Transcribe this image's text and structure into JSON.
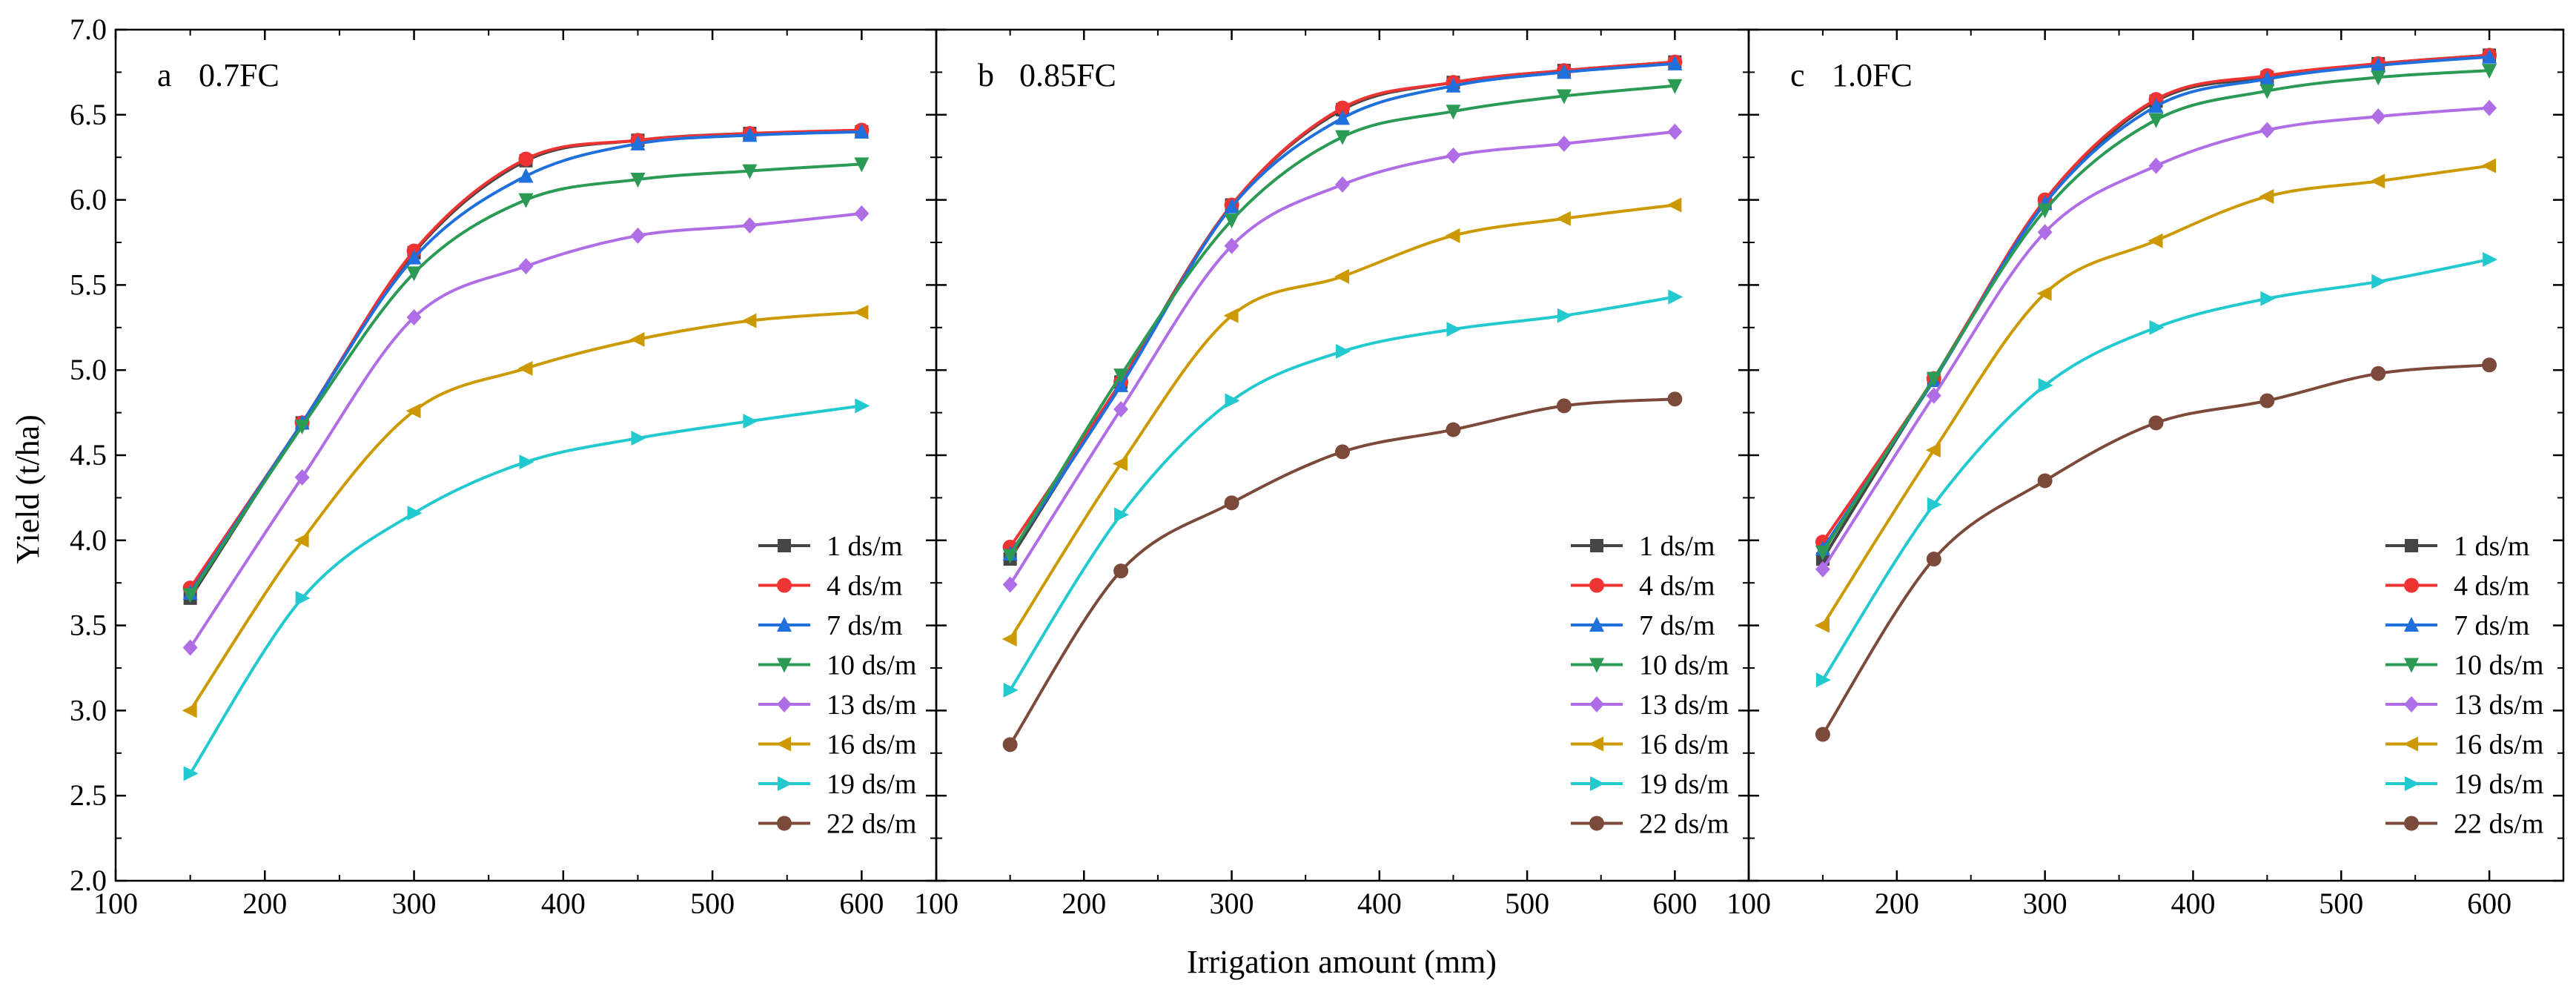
{
  "chart_data": {
    "type": "line",
    "ylabel": "Yield (t/ha)",
    "xlabel": "Irrigation amount (mm)",
    "xlim": [
      100,
      650
    ],
    "ylim": [
      2.0,
      7.0
    ],
    "x_ticks": [
      100,
      200,
      300,
      400,
      500,
      600
    ],
    "x_tick_labels": [
      "100",
      "200",
      "300",
      "400",
      "500",
      "600"
    ],
    "y_ticks": [
      2.0,
      2.5,
      3.0,
      3.5,
      4.0,
      4.5,
      5.0,
      5.5,
      6.0,
      6.5,
      7.0
    ],
    "y_tick_labels": [
      "2.0",
      "2.5",
      "3.0",
      "3.5",
      "4.0",
      "4.5",
      "5.0",
      "5.5",
      "6.0",
      "6.5",
      "7.0"
    ],
    "x": [
      150,
      225,
      300,
      375,
      450,
      525,
      600
    ],
    "legend_labels": [
      "1 ds/m",
      "4 ds/m",
      "7 ds/m",
      "10 ds/m",
      "13 ds/m",
      "16 ds/m",
      "19 ds/m",
      "22 ds/m"
    ],
    "series_styles": [
      {
        "color": "#454545",
        "marker": "square"
      },
      {
        "color": "#ee3333",
        "marker": "circle"
      },
      {
        "color": "#1f6fdd",
        "marker": "triangle-up"
      },
      {
        "color": "#2b9a55",
        "marker": "triangle-down"
      },
      {
        "color": "#b06ee6",
        "marker": "diamond"
      },
      {
        "color": "#cc9900",
        "marker": "triangle-left"
      },
      {
        "color": "#22c9cf",
        "marker": "triangle-right"
      },
      {
        "color": "#7b4a3a",
        "marker": "circle"
      }
    ],
    "panels": [
      {
        "letter": "a",
        "label": "0.7FC",
        "series": [
          {
            "name": "1 ds/m",
            "values": [
              3.66,
              4.69,
              5.69,
              6.23,
              6.35,
              6.39,
              6.4
            ]
          },
          {
            "name": "4 ds/m",
            "values": [
              3.72,
              4.69,
              5.7,
              6.24,
              6.35,
              6.39,
              6.41
            ]
          },
          {
            "name": "7 ds/m",
            "values": [
              3.69,
              4.69,
              5.66,
              6.14,
              6.33,
              6.38,
              6.4
            ]
          },
          {
            "name": "10 ds/m",
            "values": [
              3.68,
              4.67,
              5.57,
              6.0,
              6.12,
              6.17,
              6.21
            ]
          },
          {
            "name": "13 ds/m",
            "values": [
              3.37,
              4.37,
              5.31,
              5.61,
              5.79,
              5.85,
              5.92
            ]
          },
          {
            "name": "16 ds/m",
            "values": [
              3.0,
              4.0,
              4.76,
              5.01,
              5.18,
              5.29,
              5.34
            ]
          },
          {
            "name": "19 ds/m",
            "values": [
              2.63,
              3.66,
              4.16,
              4.46,
              4.6,
              4.7,
              4.79
            ]
          }
        ]
      },
      {
        "letter": "b",
        "label": "0.85FC",
        "series": [
          {
            "name": "1 ds/m",
            "values": [
              3.89,
              4.93,
              5.97,
              6.53,
              6.69,
              6.76,
              6.81
            ]
          },
          {
            "name": "4 ds/m",
            "values": [
              3.96,
              4.93,
              5.97,
              6.54,
              6.69,
              6.76,
              6.81
            ]
          },
          {
            "name": "7 ds/m",
            "values": [
              3.92,
              4.91,
              5.96,
              6.48,
              6.67,
              6.75,
              6.8
            ]
          },
          {
            "name": "10 ds/m",
            "values": [
              3.91,
              4.97,
              5.88,
              6.37,
              6.52,
              6.61,
              6.67
            ]
          },
          {
            "name": "13 ds/m",
            "values": [
              3.74,
              4.77,
              5.73,
              6.09,
              6.26,
              6.33,
              6.4
            ]
          },
          {
            "name": "16 ds/m",
            "values": [
              3.42,
              4.45,
              5.32,
              5.55,
              5.79,
              5.89,
              5.97
            ]
          },
          {
            "name": "19 ds/m",
            "values": [
              3.12,
              4.15,
              4.82,
              5.11,
              5.24,
              5.32,
              5.43
            ]
          },
          {
            "name": "22 ds/m",
            "values": [
              2.8,
              3.82,
              4.22,
              4.52,
              4.65,
              4.79,
              4.83
            ]
          }
        ]
      },
      {
        "letter": "c",
        "label": "1.0FC",
        "series": [
          {
            "name": "1 ds/m",
            "values": [
              3.89,
              4.95,
              5.98,
              6.58,
              6.72,
              6.8,
              6.85
            ]
          },
          {
            "name": "4 ds/m",
            "values": [
              3.99,
              4.95,
              6.0,
              6.59,
              6.73,
              6.8,
              6.85
            ]
          },
          {
            "name": "7 ds/m",
            "values": [
              3.95,
              4.94,
              5.98,
              6.55,
              6.71,
              6.79,
              6.84
            ]
          },
          {
            "name": "10 ds/m",
            "values": [
              3.93,
              4.95,
              5.94,
              6.47,
              6.64,
              6.72,
              6.76
            ]
          },
          {
            "name": "13 ds/m",
            "values": [
              3.83,
              4.85,
              5.81,
              6.2,
              6.41,
              6.49,
              6.54
            ]
          },
          {
            "name": "16 ds/m",
            "values": [
              3.5,
              4.53,
              5.45,
              5.76,
              6.02,
              6.11,
              6.2
            ]
          },
          {
            "name": "19 ds/m",
            "values": [
              3.18,
              4.21,
              4.91,
              5.25,
              5.42,
              5.52,
              5.65
            ]
          },
          {
            "name": "22 ds/m",
            "values": [
              2.86,
              3.89,
              4.35,
              4.69,
              4.82,
              4.98,
              5.03
            ]
          }
        ]
      }
    ]
  }
}
